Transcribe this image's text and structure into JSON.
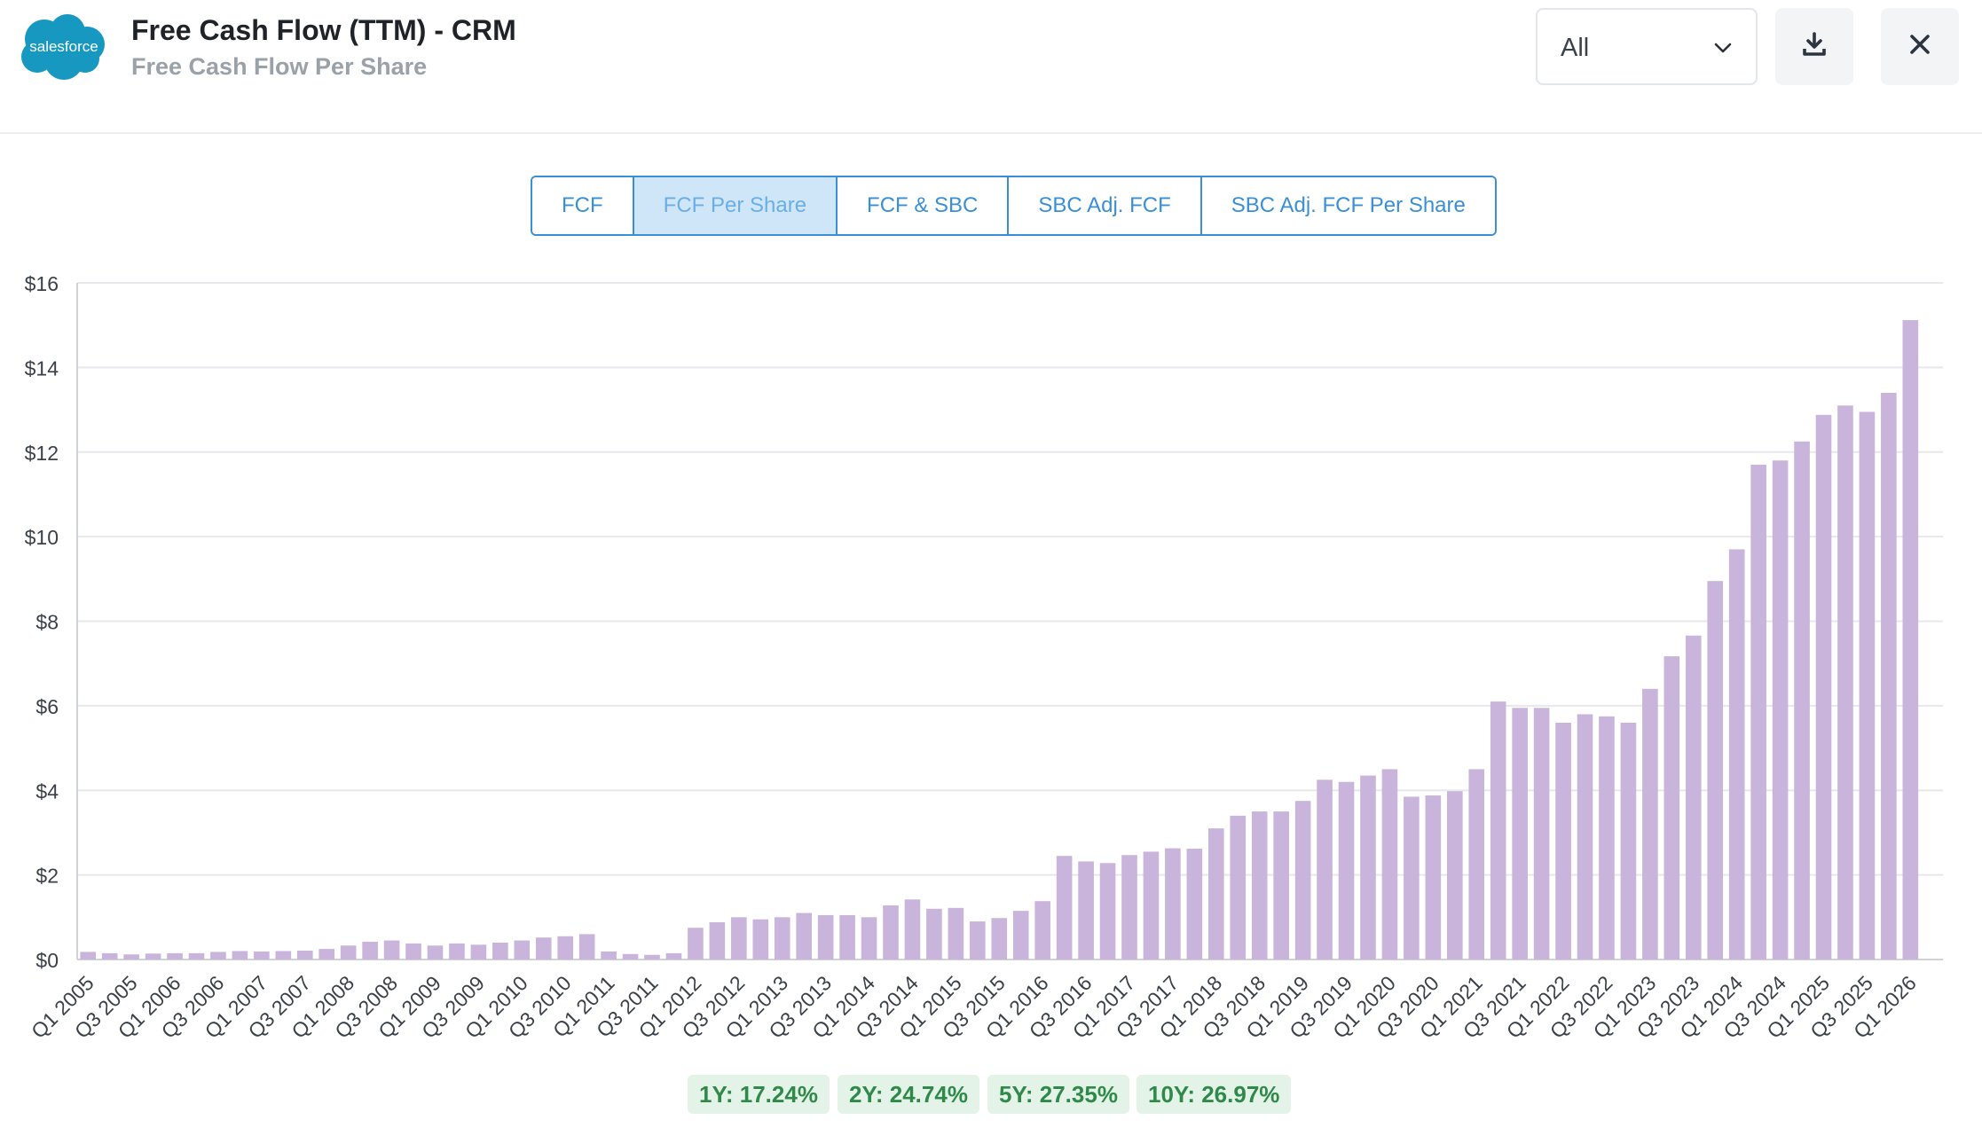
{
  "header": {
    "logo_text": "salesforce",
    "title": "Free Cash Flow (TTM) - CRM",
    "subtitle": "Free Cash Flow Per Share",
    "range_value": "All",
    "icons": {
      "download": "download-icon",
      "close": "close-icon",
      "chevron": "chevron-down-icon"
    }
  },
  "tabs": [
    {
      "label": "FCF",
      "active": false
    },
    {
      "label": "FCF Per Share",
      "active": true
    },
    {
      "label": "FCF & SBC",
      "active": false
    },
    {
      "label": "SBC Adj. FCF",
      "active": false
    },
    {
      "label": "SBC Adj. FCF Per Share",
      "active": false
    }
  ],
  "growth": [
    {
      "label": "1Y: 17.24%"
    },
    {
      "label": "2Y: 24.74%"
    },
    {
      "label": "5Y: 27.35%"
    },
    {
      "label": "10Y: 26.97%"
    }
  ],
  "colors": {
    "bar": "#c9b4dc",
    "accent": "#3a8fd6",
    "growth_bg": "#e4f3e7",
    "growth_text": "#2f8a4a"
  },
  "chart_data": {
    "type": "bar",
    "title": "",
    "xlabel": "",
    "ylabel": "",
    "ylim": [
      0,
      16
    ],
    "y_ticks": [
      "$0",
      "$2",
      "$4",
      "$6",
      "$8",
      "$10",
      "$12",
      "$14",
      "$16"
    ],
    "grid": true,
    "x_tick_labels": [
      "Q1 2005",
      "Q3 2005",
      "Q1 2006",
      "Q3 2006",
      "Q1 2007",
      "Q3 2007",
      "Q1 2008",
      "Q3 2008",
      "Q1 2009",
      "Q3 2009",
      "Q1 2010",
      "Q3 2010",
      "Q1 2011",
      "Q3 2011",
      "Q1 2012",
      "Q3 2012",
      "Q1 2013",
      "Q3 2013",
      "Q1 2014",
      "Q3 2014",
      "Q1 2015",
      "Q3 2015",
      "Q1 2016",
      "Q3 2016",
      "Q1 2017",
      "Q3 2017",
      "Q1 2018",
      "Q3 2018",
      "Q1 2019",
      "Q3 2019",
      "Q1 2020",
      "Q3 2020",
      "Q1 2021",
      "Q3 2021",
      "Q1 2022",
      "Q3 2022",
      "Q1 2023",
      "Q3 2023",
      "Q1 2024",
      "Q3 2024",
      "Q1 2025",
      "Q3 2025",
      "Q1 2026"
    ],
    "categories": [
      "Q1 2005",
      "Q2 2005",
      "Q3 2005",
      "Q4 2005",
      "Q1 2006",
      "Q2 2006",
      "Q3 2006",
      "Q4 2006",
      "Q1 2007",
      "Q2 2007",
      "Q3 2007",
      "Q4 2007",
      "Q1 2008",
      "Q2 2008",
      "Q3 2008",
      "Q4 2008",
      "Q1 2009",
      "Q2 2009",
      "Q3 2009",
      "Q4 2009",
      "Q1 2010",
      "Q2 2010",
      "Q3 2010",
      "Q4 2010",
      "Q1 2011",
      "Q2 2011",
      "Q3 2011",
      "Q4 2011",
      "Q1 2012",
      "Q2 2012",
      "Q3 2012",
      "Q4 2012",
      "Q1 2013",
      "Q2 2013",
      "Q3 2013",
      "Q4 2013",
      "Q1 2014",
      "Q2 2014",
      "Q3 2014",
      "Q4 2014",
      "Q1 2015",
      "Q2 2015",
      "Q3 2015",
      "Q4 2015",
      "Q1 2016",
      "Q2 2016",
      "Q3 2016",
      "Q4 2016",
      "Q1 2017",
      "Q2 2017",
      "Q3 2017",
      "Q4 2017",
      "Q1 2018",
      "Q2 2018",
      "Q3 2018",
      "Q4 2018",
      "Q1 2019",
      "Q2 2019",
      "Q3 2019",
      "Q4 2019",
      "Q1 2020",
      "Q2 2020",
      "Q3 2020",
      "Q4 2020",
      "Q1 2021",
      "Q2 2021",
      "Q3 2021",
      "Q4 2021",
      "Q1 2022",
      "Q2 2022",
      "Q3 2022",
      "Q4 2022",
      "Q1 2023",
      "Q2 2023",
      "Q3 2023",
      "Q4 2023",
      "Q1 2024",
      "Q2 2024",
      "Q3 2024",
      "Q4 2024",
      "Q1 2025",
      "Q2 2025",
      "Q3 2025",
      "Q4 2025",
      "Q1 2026",
      "Q2 2026"
    ],
    "values": [
      0.18,
      0.15,
      0.12,
      0.14,
      0.15,
      0.15,
      0.18,
      0.2,
      0.19,
      0.2,
      0.21,
      0.25,
      0.33,
      0.42,
      0.45,
      0.38,
      0.33,
      0.38,
      0.35,
      0.4,
      0.45,
      0.52,
      0.55,
      0.6,
      0.19,
      0.13,
      0.11,
      0.15,
      0.75,
      0.88,
      1.0,
      0.95,
      1.0,
      1.1,
      1.05,
      1.05,
      1.0,
      1.28,
      1.42,
      1.2,
      1.22,
      0.9,
      0.98,
      1.15,
      1.38,
      2.45,
      2.32,
      2.28,
      2.47,
      2.55,
      2.63,
      2.62,
      3.1,
      3.4,
      3.5,
      3.5,
      3.75,
      4.25,
      4.2,
      4.35,
      4.5,
      3.85,
      3.88,
      3.98,
      4.5,
      6.1,
      5.95,
      5.95,
      5.6,
      5.8,
      5.75,
      5.6,
      6.4,
      7.17,
      7.66,
      8.95,
      9.7,
      11.7,
      11.8,
      12.25,
      12.88,
      13.1,
      12.95,
      13.4,
      15.12,
      0
    ]
  }
}
